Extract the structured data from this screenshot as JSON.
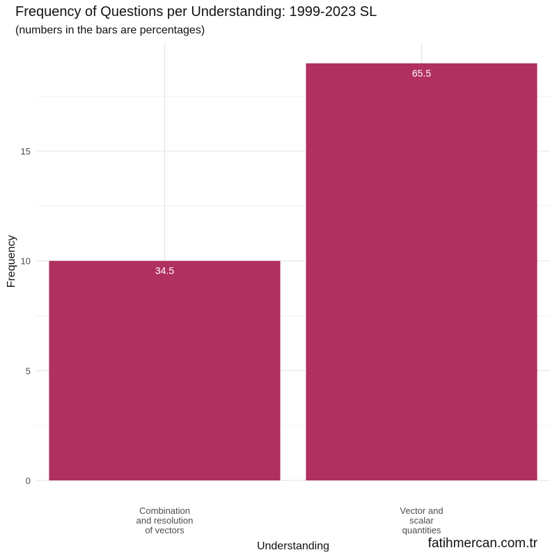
{
  "chart_data": {
    "type": "bar",
    "title": "Frequency of Questions per Understanding: 1999-2023 SL",
    "subtitle": "(numbers in the bars are percentages)",
    "xlabel": "Understanding",
    "ylabel": "Frequency",
    "categories": [
      [
        "Combination",
        "and resolution",
        "of vectors"
      ],
      [
        "Vector and",
        "scalar",
        "quantities"
      ]
    ],
    "values": [
      10,
      19
    ],
    "bar_labels": [
      "34.5",
      "65.5"
    ],
    "yticks": [
      0,
      5,
      10,
      15
    ],
    "ylim": [
      0,
      19.95
    ],
    "grid": true,
    "bar_color": "#B03060",
    "legend": "none"
  },
  "watermark": "fatihmercan.com.tr"
}
